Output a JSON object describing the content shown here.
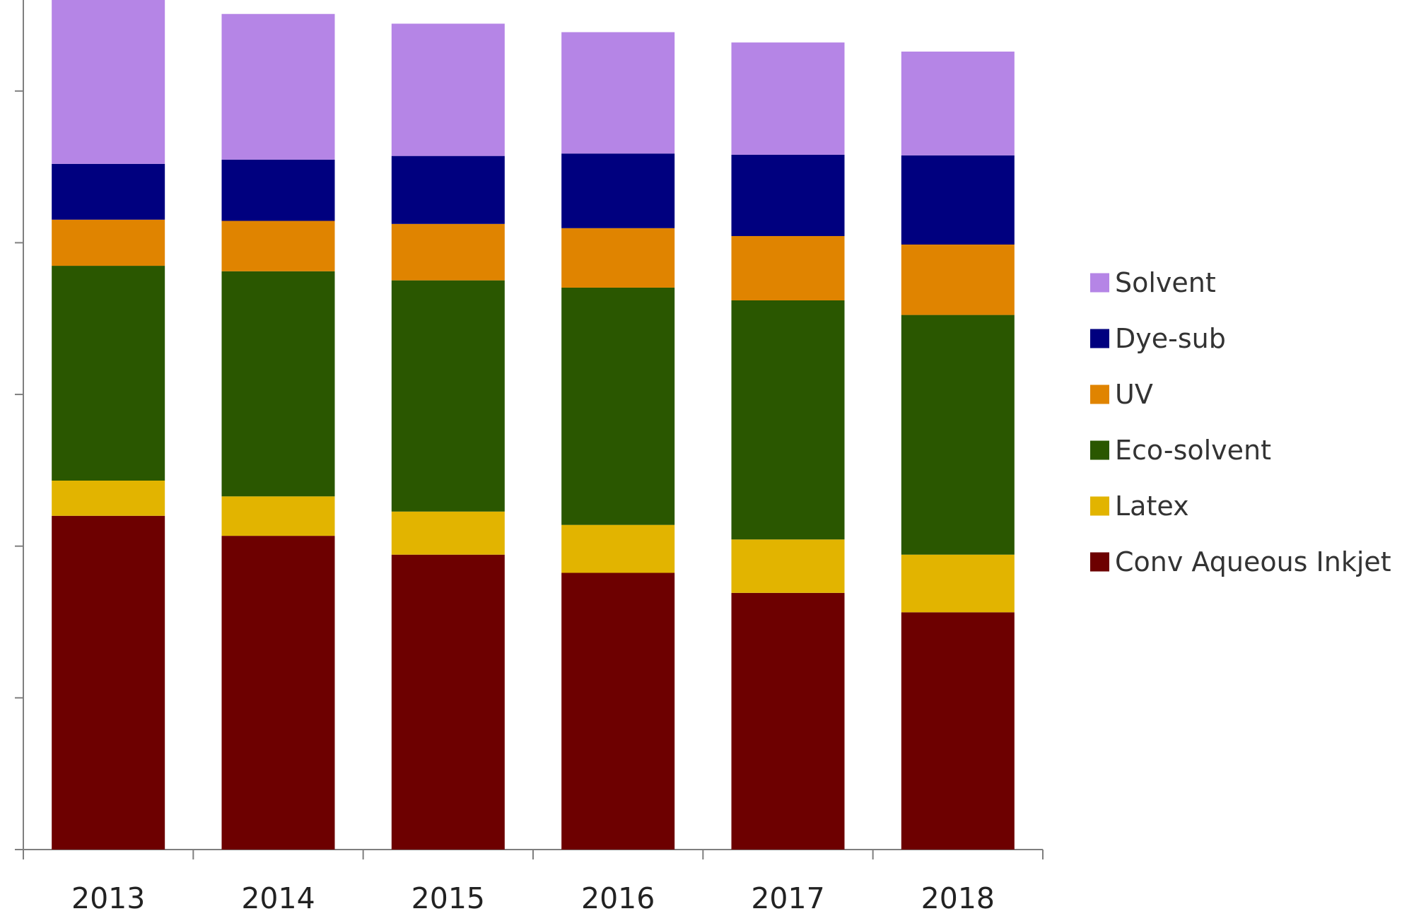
{
  "chart_data": {
    "type": "bar",
    "stacked": true,
    "categories": [
      "2013",
      "2014",
      "2015",
      "2016",
      "2017",
      "2018"
    ],
    "series": [
      {
        "name": "Conv Aqueous Inkjet",
        "color": "#6d0000",
        "values": [
          55,
          51.7,
          48.6,
          45.6,
          42.3,
          39.1
        ]
      },
      {
        "name": "Latex",
        "color": "#e2b400",
        "values": [
          5.8,
          6.5,
          7.1,
          7.9,
          8.8,
          9.5
        ]
      },
      {
        "name": "Eco-solvent",
        "color": "#2a5700",
        "values": [
          35.4,
          37.1,
          38.1,
          39.1,
          39.4,
          39.5
        ]
      },
      {
        "name": "UV",
        "color": "#e08400",
        "values": [
          7.6,
          8.3,
          9.3,
          9.8,
          10.6,
          11.6
        ]
      },
      {
        "name": "Dye-sub",
        "color": "#00007f",
        "values": [
          9.2,
          10.1,
          11.2,
          12.3,
          13.4,
          14.7
        ]
      },
      {
        "name": "Solvent",
        "color": "#b585e6",
        "values": [
          27.2,
          24.0,
          21.8,
          20.0,
          18.5,
          17.1
        ]
      }
    ],
    "legend_order": [
      "Solvent",
      "Dye-sub",
      "UV",
      "Eco-solvent",
      "Latex",
      "Conv Aqueous Inkjet"
    ],
    "ylim": [
      0,
      140
    ],
    "yticks": [
      0,
      25,
      50,
      75,
      100,
      125
    ],
    "ytick_labels_shown": false,
    "grid": false,
    "legend_position": "right",
    "title": "",
    "xlabel": "",
    "ylabel": ""
  }
}
